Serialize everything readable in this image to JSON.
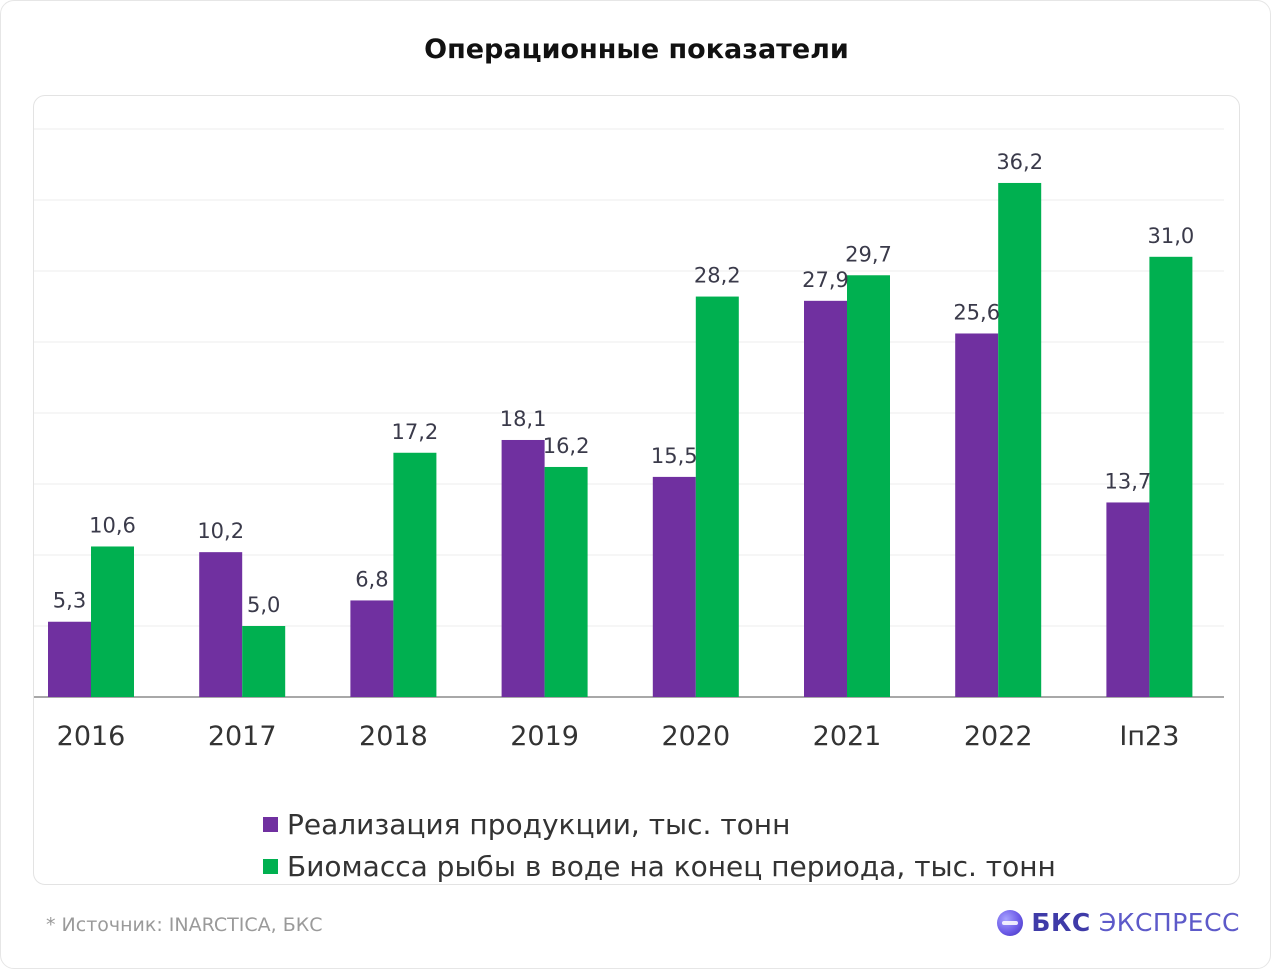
{
  "title": "Операционные показатели",
  "colors": {
    "series1": "#7030a0",
    "series2": "#00b050"
  },
  "chart_data": {
    "type": "bar",
    "categories": [
      "2016",
      "2017",
      "2018",
      "2019",
      "2020",
      "2021",
      "2022",
      "Iп23"
    ],
    "series": [
      {
        "name": "Реализация продукции, тыс. тонн",
        "values": [
          5.3,
          10.2,
          6.8,
          18.1,
          15.5,
          27.9,
          25.6,
          13.7
        ],
        "labels": [
          "5,3",
          "10,2",
          "6,8",
          "18,1",
          "15,5",
          "27,9",
          "25,6",
          "13,7"
        ]
      },
      {
        "name": "Биомасса рыбы в воде на конец периода, тыс. тонн",
        "values": [
          10.6,
          5.0,
          17.2,
          16.2,
          28.2,
          29.7,
          36.2,
          31.0
        ],
        "labels": [
          "10,6",
          "5,0",
          "17,2",
          "16,2",
          "28,2",
          "29,7",
          "36,2",
          "31,0"
        ]
      }
    ],
    "ylim": [
      0,
      40
    ],
    "grid": true,
    "legend": "bottom"
  },
  "footer": {
    "source": "*  Источник: INARCTICA, БКС",
    "brand_strong": "БКС",
    "brand_light": "ЭКСПРЕСС",
    "brand_icon": "bks-logo-icon"
  }
}
